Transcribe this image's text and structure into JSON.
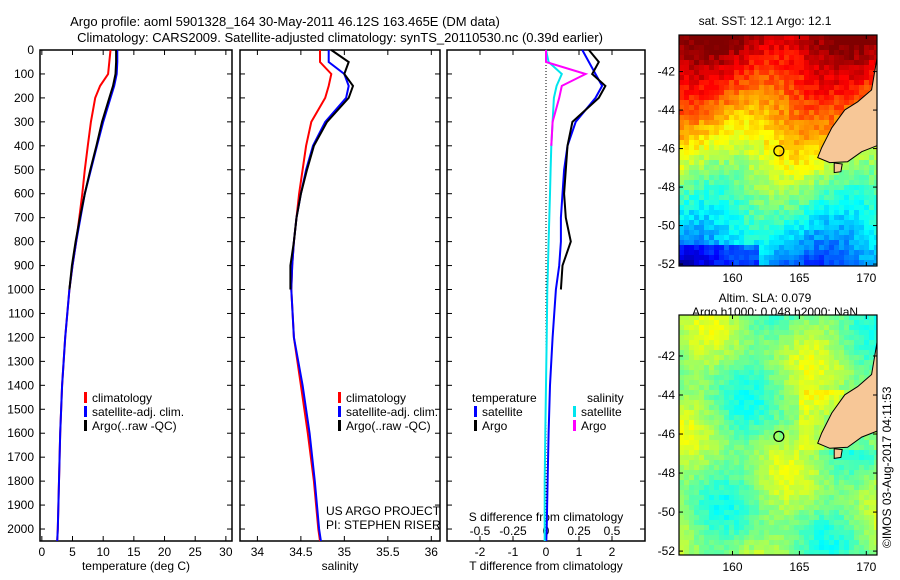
{
  "header": {
    "title_line1": "Argo profile: aoml 5901328_164 30-May-2011 46.12S 163.465E (DM data)",
    "title_line2": "Climatology: CARS2009. Satellite-adjusted climatology: synTS_20110530.nc (0.39d earlier)"
  },
  "credits": {
    "project": "US ARGO PROJECT",
    "pi": "PI: STEPHEN RISER",
    "timestamp": "©IMOS 03-Aug-2017 04:11:53"
  },
  "colors": {
    "climatology": "#ff0000",
    "satellite": "#0000ff",
    "argo": "#000000",
    "s_satellite": "#00e5ee",
    "s_argo": "#ff00ff",
    "land": "#f7c797"
  },
  "chart_data": [
    {
      "type": "line",
      "title": "",
      "xlabel": "temperature (deg C)",
      "ylabel": "",
      "xlim": [
        -0.3,
        31
      ],
      "ylim": [
        2050,
        0
      ],
      "xticks": [
        "0",
        "5",
        "10",
        "15",
        "20",
        "25",
        "30"
      ],
      "yticks": [
        "0",
        "100",
        "200",
        "300",
        "400",
        "500",
        "600",
        "700",
        "800",
        "900",
        "1000",
        "1100",
        "1200",
        "1300",
        "1400",
        "1500",
        "1600",
        "1700",
        "1800",
        "1900",
        "2000"
      ],
      "depth": [
        0,
        50,
        100,
        150,
        200,
        300,
        400,
        500,
        600,
        700,
        800,
        900,
        1000,
        1200,
        1400,
        1600,
        1800,
        2000,
        2050
      ],
      "legend": [
        "climatology",
        "satellite-adj. clim.",
        "Argo(..raw -QC)"
      ],
      "series": [
        {
          "name": "climatology",
          "color": "#ff0000",
          "values": [
            11.2,
            11,
            10.8,
            9.5,
            8.7,
            8,
            7.5,
            7,
            6.6,
            6.1,
            5.6,
            5,
            4.5,
            3.8,
            3.3,
            3,
            2.8,
            2.6,
            2.5
          ]
        },
        {
          "name": "satellite-adj. clim.",
          "color": "#0000ff",
          "values": [
            12.3,
            12.3,
            12.2,
            11.8,
            11.2,
            10,
            9,
            8,
            7,
            6.3,
            5.6,
            5,
            4.5,
            3.8,
            3.3,
            3,
            2.8,
            2.6,
            2.5
          ]
        },
        {
          "name": "Argo(..raw -QC)",
          "color": "#000000",
          "values": [
            12.1,
            12.1,
            12.0,
            11.6,
            11.0,
            9.8,
            8.9,
            7.9,
            7.0,
            6.2,
            5.5,
            4.9,
            4.5,
            null,
            null,
            null,
            null,
            null,
            null
          ]
        }
      ]
    },
    {
      "type": "line",
      "xlabel": "salinity",
      "xlim": [
        33.8,
        36.1
      ],
      "ylim": [
        2050,
        0
      ],
      "xticks": [
        "34",
        "34.5",
        "35",
        "35.5",
        "36"
      ],
      "depth": [
        0,
        50,
        100,
        150,
        200,
        300,
        400,
        500,
        600,
        700,
        800,
        900,
        1000,
        1200,
        1400,
        1600,
        1800,
        2000,
        2050
      ],
      "legend": [
        "climatology",
        "satellite-adj. clim.",
        "Argo(..raw -QC)"
      ],
      "series": [
        {
          "name": "climatology",
          "color": "#ff0000",
          "values": [
            34.72,
            34.72,
            34.85,
            34.82,
            34.78,
            34.62,
            34.56,
            34.52,
            34.48,
            34.45,
            34.42,
            34.4,
            34.39,
            34.42,
            34.5,
            34.58,
            34.65,
            34.7,
            34.72
          ]
        },
        {
          "name": "satellite-adj. clim.",
          "color": "#0000ff",
          "values": [
            34.82,
            34.82,
            35.0,
            35.05,
            35.02,
            34.78,
            34.64,
            34.56,
            34.5,
            34.45,
            34.42,
            34.4,
            34.39,
            34.42,
            34.52,
            34.6,
            34.66,
            34.71,
            34.73
          ]
        },
        {
          "name": "Argo(..raw -QC)",
          "color": "#000000",
          "values": [
            34.85,
            35.05,
            35.0,
            35.1,
            35.05,
            34.8,
            34.65,
            34.57,
            34.5,
            34.45,
            34.42,
            34.38,
            34.38,
            null,
            null,
            null,
            null,
            null,
            null
          ]
        }
      ]
    },
    {
      "type": "line",
      "xlabel": "T difference from climatology",
      "x2label": "S difference from climatology",
      "xlim": [
        -3,
        3
      ],
      "x2lim": [
        -0.75,
        0.75
      ],
      "ylim": [
        2050,
        0
      ],
      "xticks": [
        "-2",
        "-1",
        "0",
        "1",
        "2"
      ],
      "x2ticks": [
        "-0.5",
        "-0.25",
        "0",
        "0.25",
        "0.5"
      ],
      "depth": [
        0,
        50,
        100,
        150,
        200,
        300,
        400,
        500,
        600,
        700,
        800,
        900,
        1000,
        1200,
        1400,
        1600,
        1800,
        2000,
        2050
      ],
      "legend": {
        "temperature": "temperature",
        "salinity": "salinity",
        "satellite": "satellite",
        "argo": "Argo"
      },
      "series": [
        {
          "name": "temperature satellite",
          "axis": "T",
          "color": "#0000ff",
          "values": [
            1.1,
            1.3,
            1.5,
            1.7,
            1.5,
            0.9,
            0.65,
            0.55,
            0.5,
            0.45,
            0.45,
            0.4,
            0.3,
            0.2,
            0.12,
            0.08,
            0.05,
            0.02,
            0.01
          ]
        },
        {
          "name": "temperature Argo",
          "axis": "T",
          "color": "#000000",
          "values": [
            1.3,
            1.6,
            1.4,
            1.8,
            1.6,
            0.8,
            0.65,
            0.6,
            0.55,
            0.6,
            0.75,
            0.5,
            0.45,
            null,
            null,
            null,
            null,
            null,
            null
          ]
        },
        {
          "name": "salinity satellite",
          "axis": "S",
          "color": "#00e5ee",
          "values": [
            0.0,
            0.02,
            0.12,
            0.08,
            0.06,
            0.05,
            0.04,
            0.035,
            0.03,
            0.025,
            0.02,
            0.015,
            0.01,
            0.005,
            0,
            -0.005,
            -0.01,
            -0.01,
            -0.01
          ]
        },
        {
          "name": "salinity Argo",
          "axis": "S",
          "color": "#ff00ff",
          "values": [
            0.0,
            0.0,
            0.3,
            0.12,
            0.1,
            0.05,
            0.04,
            null,
            null,
            null,
            null,
            null,
            null,
            null,
            null,
            null,
            null,
            null,
            null
          ]
        }
      ]
    },
    {
      "type": "heatmap",
      "title": "sat. SST: 12.1 Argo: 12.1",
      "xlim": [
        156.0,
        170.8
      ],
      "ylim": [
        -52.1,
        -40.1
      ],
      "xticks": [
        "160",
        "165",
        "170"
      ],
      "yticks": [
        "-42",
        "-44",
        "-46",
        "-48",
        "-50",
        "-52"
      ],
      "marker": {
        "lon": 163.465,
        "lat": -46.12
      }
    },
    {
      "type": "heatmap",
      "title_line1": "Altim. SLA: 0.079",
      "title_line2": "Argo h1000: 0.048 h2000: NaN",
      "xlim": [
        156.0,
        170.8
      ],
      "ylim": [
        -52.2,
        -39.9
      ],
      "xticks": [
        "160",
        "165",
        "170"
      ],
      "yticks": [
        "-42",
        "-44",
        "-46",
        "-48",
        "-50",
        "-52"
      ],
      "marker": {
        "lon": 163.465,
        "lat": -46.12
      }
    }
  ]
}
